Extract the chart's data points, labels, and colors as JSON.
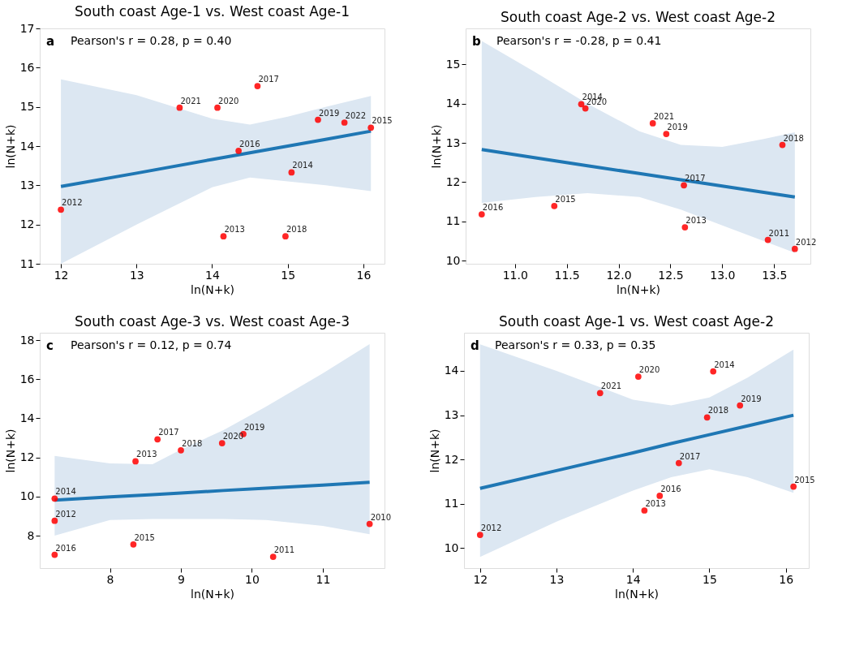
{
  "chart_data": [
    {
      "type": "scatter",
      "title": "South coast Age-1 vs. West coast Age-1",
      "xlabel": "ln(N+k)",
      "ylabel": "ln(N+k)",
      "annotations": [
        "a",
        "Pearson's r = 0.28, p = 0.40",
        {
          "text": "2012",
          "x": 12.0,
          "y": 12.38
        },
        {
          "text": "2021",
          "x": 13.57,
          "y": 14.98
        },
        {
          "text": "2020",
          "x": 14.07,
          "y": 14.98
        },
        {
          "text": "2017",
          "x": 14.6,
          "y": 15.53
        },
        {
          "text": "2016",
          "x": 14.35,
          "y": 13.88
        },
        {
          "text": "2013",
          "x": 14.15,
          "y": 11.7
        },
        {
          "text": "2018",
          "x": 14.97,
          "y": 11.7
        },
        {
          "text": "2014",
          "x": 15.05,
          "y": 13.33
        },
        {
          "text": "2019",
          "x": 15.4,
          "y": 14.67
        },
        {
          "text": "2022",
          "x": 15.75,
          "y": 14.6
        },
        {
          "text": "2015",
          "x": 16.1,
          "y": 14.47
        }
      ],
      "xlim": [
        11.72,
        16.28
      ],
      "ylim": [
        11,
        17
      ],
      "xticks": [
        12,
        13,
        14,
        15,
        16
      ],
      "yticks": [
        11,
        12,
        13,
        14,
        15,
        16,
        17
      ],
      "grid": false,
      "series": [
        {
          "color": "#ff0000",
          "marker": "circle",
          "x": [
            12.0,
            13.57,
            14.07,
            14.6,
            14.35,
            14.15,
            14.97,
            15.05,
            15.4,
            15.75,
            16.1
          ],
          "values": [
            12.38,
            14.98,
            14.98,
            15.53,
            13.88,
            11.7,
            11.7,
            13.33,
            14.67,
            14.6,
            14.47
          ]
        },
        {
          "type": "line",
          "color": "#1f77b4",
          "x": [
            12,
            13,
            14,
            14.5,
            15,
            15.5,
            16.1
          ],
          "values": [
            12.97,
            13.31,
            13.66,
            13.83,
            14.0,
            14.17,
            14.38
          ],
          "lower": [
            11.0,
            12.0,
            12.95,
            13.2,
            13.1,
            13.0,
            12.85
          ],
          "upper": [
            15.7,
            15.3,
            14.7,
            14.55,
            14.75,
            15.0,
            15.28
          ]
        }
      ]
    },
    {
      "type": "scatter",
      "title": "South coast Age-2 vs. West coast Age-2",
      "xlabel": "ln(N+k)",
      "ylabel": "ln(N+k)",
      "annotations": [
        "b",
        "Pearson's r = -0.28, p = 0.41",
        {
          "text": "2016",
          "x": 10.68,
          "y": 11.18
        },
        {
          "text": "2015",
          "x": 11.38,
          "y": 11.39
        },
        {
          "text": "2014",
          "x": 11.64,
          "y": 13.99
        },
        {
          "text": "2020",
          "x": 11.68,
          "y": 13.88
        },
        {
          "text": "2021",
          "x": 12.33,
          "y": 13.5
        },
        {
          "text": "2019",
          "x": 12.46,
          "y": 13.23
        },
        {
          "text": "2017",
          "x": 12.63,
          "y": 11.92
        },
        {
          "text": "2013",
          "x": 12.64,
          "y": 10.85
        },
        {
          "text": "2018",
          "x": 13.58,
          "y": 12.95
        },
        {
          "text": "2011",
          "x": 13.44,
          "y": 10.53
        },
        {
          "text": "2012",
          "x": 13.7,
          "y": 10.3
        }
      ],
      "xlim": [
        10.525,
        13.85
      ],
      "ylim": [
        9.92,
        15.92
      ],
      "xticks": [
        {
          "value": 11,
          "label": "11.0"
        },
        11.5,
        {
          "value": 12,
          "label": "12.0"
        },
        12.5,
        {
          "value": 13,
          "label": "13.0"
        },
        13.5
      ],
      "yticks": [
        10,
        11,
        12,
        13,
        14,
        15
      ],
      "grid": false,
      "series": [
        {
          "color": "#ff0000",
          "marker": "circle",
          "x": [
            10.68,
            11.38,
            11.64,
            11.68,
            12.33,
            12.46,
            12.63,
            12.64,
            13.58,
            13.44,
            13.7
          ],
          "values": [
            11.18,
            11.39,
            13.99,
            13.88,
            13.5,
            13.23,
            11.92,
            10.85,
            12.95,
            10.53,
            10.3
          ]
        },
        {
          "type": "line",
          "color": "#1f77b4",
          "x": [
            10.68,
            11.2,
            11.7,
            12.2,
            12.6,
            13.0,
            13.4,
            13.7
          ],
          "values": [
            12.83,
            12.62,
            12.42,
            12.22,
            12.06,
            11.9,
            11.74,
            11.62
          ],
          "lower": [
            11.47,
            11.62,
            11.72,
            11.62,
            11.3,
            10.9,
            10.5,
            10.2
          ],
          "upper": [
            15.6,
            14.8,
            14.0,
            13.3,
            12.95,
            12.9,
            13.1,
            13.27
          ]
        }
      ]
    },
    {
      "type": "scatter",
      "title": "South coast Age-3 vs. West coast Age-3",
      "xlabel": "ln(N+k)",
      "ylabel": "ln(N+k)",
      "annotations": [
        "c",
        "Pearson's r = 0.12, p = 0.74",
        {
          "text": "2014",
          "x": 7.22,
          "y": 9.9
        },
        {
          "text": "2012",
          "x": 7.22,
          "y": 8.76
        },
        {
          "text": "2016",
          "x": 7.22,
          "y": 7.02
        },
        {
          "text": "2013",
          "x": 8.36,
          "y": 11.8
        },
        {
          "text": "2015",
          "x": 8.33,
          "y": 7.55
        },
        {
          "text": "2017",
          "x": 8.67,
          "y": 12.93
        },
        {
          "text": "2018",
          "x": 9.0,
          "y": 12.37
        },
        {
          "text": "2020",
          "x": 9.58,
          "y": 12.73
        },
        {
          "text": "2019",
          "x": 9.88,
          "y": 13.2
        },
        {
          "text": "2011",
          "x": 10.3,
          "y": 6.92
        },
        {
          "text": "2010",
          "x": 11.66,
          "y": 8.6
        }
      ],
      "xlim": [
        7.01,
        11.87
      ],
      "ylim": [
        6.34,
        18.38
      ],
      "xticks": [
        8,
        9,
        10,
        11
      ],
      "yticks": [
        8,
        10,
        12,
        14,
        16,
        18
      ],
      "grid": false,
      "series": [
        {
          "color": "#ff0000",
          "marker": "circle",
          "x": [
            7.22,
            7.22,
            7.22,
            8.36,
            8.33,
            8.67,
            9.0,
            9.58,
            9.88,
            10.3,
            11.66
          ],
          "values": [
            9.9,
            8.76,
            7.02,
            11.8,
            7.55,
            12.93,
            12.37,
            12.73,
            13.2,
            6.92,
            8.6
          ]
        },
        {
          "type": "line",
          "color": "#1f77b4",
          "x": [
            7.22,
            8.0,
            8.6,
            9.0,
            9.6,
            10.2,
            11.0,
            11.66
          ],
          "values": [
            9.82,
            9.98,
            10.1,
            10.18,
            10.31,
            10.43,
            10.59,
            10.73
          ],
          "lower": [
            8.0,
            8.8,
            8.85,
            8.85,
            8.85,
            8.8,
            8.5,
            8.07
          ],
          "upper": [
            12.08,
            11.7,
            11.65,
            12.4,
            13.4,
            14.6,
            16.3,
            17.8
          ]
        }
      ]
    },
    {
      "type": "scatter",
      "title": "South coast Age-1 vs. West coast Age-2",
      "xlabel": "ln(N+k)",
      "ylabel": "ln(N+k)",
      "annotations": [
        "d",
        "Pearson's r = 0.33, p = 0.35",
        {
          "text": "2012",
          "x": 12.0,
          "y": 10.3
        },
        {
          "text": "2021",
          "x": 13.57,
          "y": 13.5
        },
        {
          "text": "2020",
          "x": 14.07,
          "y": 13.87
        },
        {
          "text": "2014",
          "x": 15.05,
          "y": 13.99
        },
        {
          "text": "2019",
          "x": 15.4,
          "y": 13.22
        },
        {
          "text": "2018",
          "x": 14.97,
          "y": 12.95
        },
        {
          "text": "2017",
          "x": 14.6,
          "y": 11.92
        },
        {
          "text": "2016",
          "x": 14.35,
          "y": 11.18
        },
        {
          "text": "2013",
          "x": 14.15,
          "y": 10.85
        },
        {
          "text": "2015",
          "x": 16.1,
          "y": 11.39
        }
      ],
      "xlim": [
        11.79,
        16.3
      ],
      "ylim": [
        9.55,
        14.86
      ],
      "xticks": [
        12,
        13,
        14,
        15,
        16
      ],
      "yticks": [
        10,
        11,
        12,
        13,
        14
      ],
      "grid": false,
      "series": [
        {
          "color": "#ff0000",
          "marker": "circle",
          "x": [
            12.0,
            13.57,
            14.07,
            15.05,
            15.4,
            14.97,
            14.6,
            14.35,
            14.15,
            16.1
          ],
          "values": [
            10.3,
            13.5,
            13.87,
            13.99,
            13.22,
            12.95,
            11.92,
            11.18,
            10.85,
            11.39
          ]
        },
        {
          "type": "line",
          "color": "#1f77b4",
          "x": [
            12,
            13,
            14,
            14.5,
            15,
            15.5,
            16.1
          ],
          "values": [
            11.35,
            11.75,
            12.15,
            12.36,
            12.56,
            12.76,
            13.0
          ],
          "lower": [
            9.8,
            10.6,
            11.3,
            11.6,
            11.78,
            11.6,
            11.25
          ],
          "upper": [
            14.6,
            14.0,
            13.35,
            13.22,
            13.4,
            13.85,
            14.48
          ]
        }
      ]
    }
  ]
}
